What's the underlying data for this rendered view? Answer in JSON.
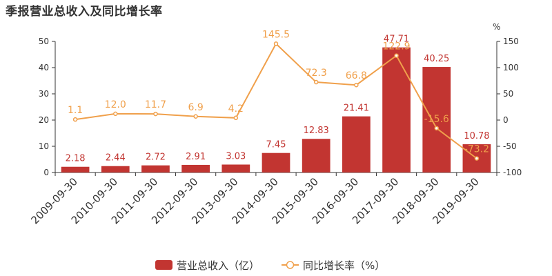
{
  "title": "季报营业总收入及同比增长率",
  "colors": {
    "bar": "#c23531",
    "line": "#f0a04b",
    "axis": "#333333",
    "bar_label": "#c23531",
    "line_label": "#f0a04b"
  },
  "chart_data": {
    "type": "bar",
    "categories": [
      "2009-09-30",
      "2010-09-30",
      "2011-09-30",
      "2012-09-30",
      "2013-09-30",
      "2014-09-30",
      "2015-09-30",
      "2016-09-30",
      "2017-09-30",
      "2018-09-30",
      "2019-09-30"
    ],
    "series": [
      {
        "name": "营业总收入（亿）",
        "type": "bar",
        "axis": "left",
        "values": [
          2.18,
          2.44,
          2.72,
          2.91,
          3.03,
          7.45,
          12.83,
          21.41,
          47.71,
          40.25,
          10.78
        ]
      },
      {
        "name": "同比增长率（%）",
        "type": "line",
        "axis": "right",
        "values": [
          1.1,
          12.0,
          11.7,
          6.9,
          4.2,
          145.5,
          72.3,
          66.8,
          122.9,
          -15.6,
          -73.2
        ]
      }
    ],
    "y_left": {
      "min": 0,
      "max": 50,
      "ticks": [
        0,
        10,
        20,
        30,
        40,
        50
      ]
    },
    "y_right": {
      "min": -100,
      "max": 150,
      "ticks": [
        -100,
        -50,
        0,
        50,
        100,
        150
      ],
      "unit": "%"
    },
    "legend": {
      "position": "bottom"
    }
  }
}
